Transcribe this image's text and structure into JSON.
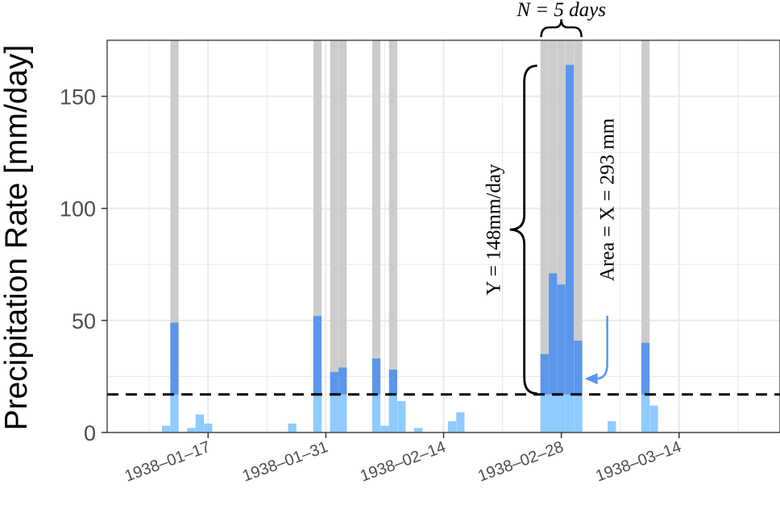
{
  "chart_data": {
    "type": "bar",
    "ylabel": "Precipitation Rate [mm/day]",
    "ylim": [
      0,
      175
    ],
    "yticks": [
      0,
      50,
      100,
      150
    ],
    "xlim": [
      "1938-01-05",
      "1938-03-26"
    ],
    "xticks": [
      {
        "date": "1938-01-17",
        "label": "1938–01–17"
      },
      {
        "date": "1938-01-31",
        "label": "1938–01–31"
      },
      {
        "date": "1938-02-14",
        "label": "1938–02–14"
      },
      {
        "date": "1938-02-28",
        "label": "1938–02–28"
      },
      {
        "date": "1938-03-14",
        "label": "1938–03–14"
      }
    ],
    "threshold": 17,
    "grid": true,
    "colors": {
      "below_threshold": "#8ecbff",
      "above_threshold": "#5a96eb",
      "exceedance_band": "#cccccc",
      "threshold_line": "#000000",
      "area_annotation": "#5a96eb"
    },
    "bars": [
      {
        "date": "1938-01-12",
        "value": 3
      },
      {
        "date": "1938-01-13",
        "value": 49
      },
      {
        "date": "1938-01-14",
        "value": 0
      },
      {
        "date": "1938-01-15",
        "value": 2
      },
      {
        "date": "1938-01-16",
        "value": 8
      },
      {
        "date": "1938-01-17",
        "value": 4
      },
      {
        "date": "1938-01-27",
        "value": 4
      },
      {
        "date": "1938-01-30",
        "value": 52
      },
      {
        "date": "1938-02-01",
        "value": 27
      },
      {
        "date": "1938-02-02",
        "value": 29
      },
      {
        "date": "1938-02-06",
        "value": 33
      },
      {
        "date": "1938-02-07",
        "value": 3
      },
      {
        "date": "1938-02-08",
        "value": 28
      },
      {
        "date": "1938-02-09",
        "value": 14
      },
      {
        "date": "1938-02-11",
        "value": 2
      },
      {
        "date": "1938-02-15",
        "value": 5
      },
      {
        "date": "1938-02-16",
        "value": 9
      },
      {
        "date": "1938-02-26",
        "value": 35
      },
      {
        "date": "1938-02-27",
        "value": 71
      },
      {
        "date": "1938-02-28",
        "value": 66
      },
      {
        "date": "1938-03-01",
        "value": 164
      },
      {
        "date": "1938-03-02",
        "value": 41
      },
      {
        "date": "1938-03-06",
        "value": 5
      },
      {
        "date": "1938-03-10",
        "value": 40
      },
      {
        "date": "1938-03-11",
        "value": 12
      }
    ],
    "exceedance_dates": [
      "1938-01-13",
      "1938-01-30",
      "1938-02-01",
      "1938-02-02",
      "1938-02-06",
      "1938-02-08",
      "1938-02-26",
      "1938-02-27",
      "1938-02-28",
      "1938-03-01",
      "1938-03-02",
      "1938-03-10"
    ],
    "annotations": {
      "duration": {
        "label": "N = 5 days",
        "start": "1938-02-26",
        "end": "1938-03-02"
      },
      "intensity": {
        "label": "Y = 148mm/day",
        "from": 17,
        "to": 164
      },
      "area": {
        "label": "Area = X = 293 mm",
        "arrow_to": {
          "date": "1938-03-02",
          "value": 24
        }
      }
    }
  }
}
